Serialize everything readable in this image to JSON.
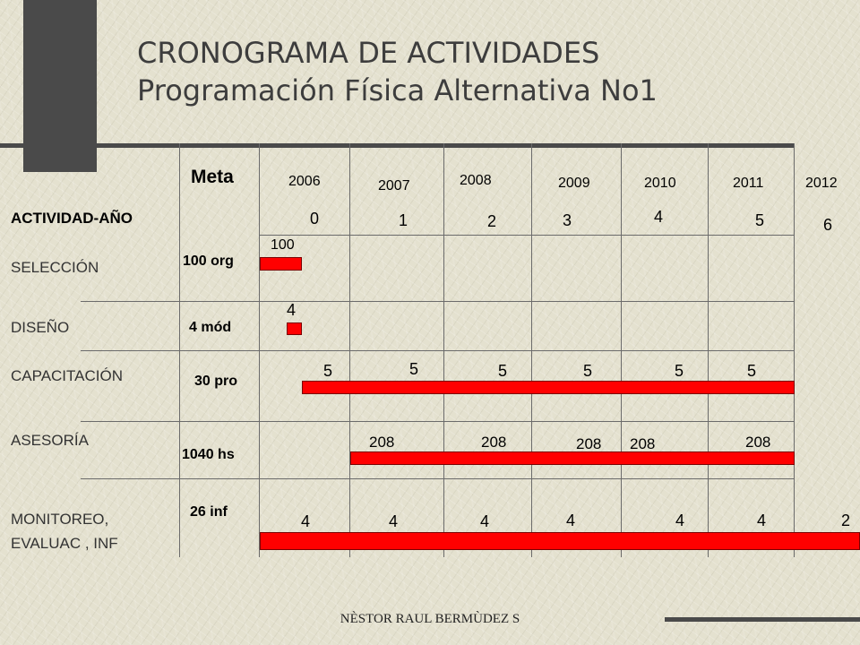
{
  "title": "CRONOGRAMA DE ACTIVIDADES",
  "subtitle": "Programación Física Alternativa No1",
  "header": {
    "meta_label": "Meta",
    "activity_year_label": "ACTIVIDAD-AÑO",
    "years": [
      "2006",
      "2007",
      "2008",
      "2009",
      "2010",
      "2011",
      "2012"
    ],
    "periods": [
      "0",
      "1",
      "2",
      "3",
      "4",
      "5",
      "6"
    ]
  },
  "activities": [
    {
      "name": "SELECCIÓN",
      "meta": "100 org",
      "values": [
        "100"
      ]
    },
    {
      "name": "DISEÑO",
      "meta": "4 mód",
      "values": [
        "4"
      ]
    },
    {
      "name": "CAPACITACIÓN",
      "meta": "30 pro",
      "values": [
        "5",
        "5",
        "5",
        "5",
        "5",
        "5"
      ]
    },
    {
      "name": "ASESORÍA",
      "meta": "1040 hs",
      "values": [
        "208",
        "208",
        "208",
        "208",
        "208"
      ]
    },
    {
      "name": "MONITOREO,",
      "name_line2": "EVALUAC , INF",
      "meta": "26 inf",
      "values": [
        "4",
        "4",
        "4",
        "4",
        "4",
        "4",
        "2"
      ]
    }
  ],
  "footer": "NÈSTOR RAUL BERMÙDEZ S",
  "colors": {
    "bar": "#ff0000",
    "grid": "#6b6b6b",
    "dark": "#4a4a4a"
  }
}
